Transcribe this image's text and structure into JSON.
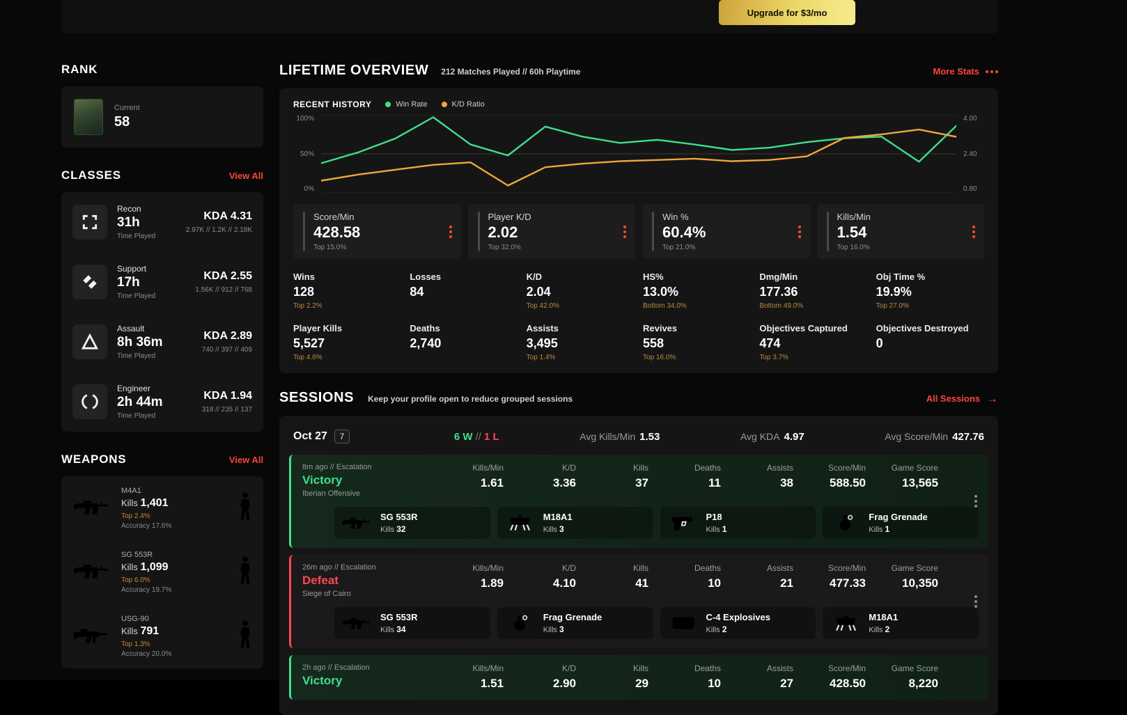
{
  "colors": {
    "accent_red": "#ff4436",
    "win_green": "#3fdf8e",
    "kd_orange": "#f0a63a",
    "defeat_red": "#ff4655",
    "percentile_gold": "#bd8a3e",
    "upgrade_gold": "#ecd768"
  },
  "topbar": {
    "upgrade_label": "Upgrade for $3/mo"
  },
  "sidebar": {
    "rank": {
      "title": "RANK",
      "current_label": "Current",
      "value": "58"
    },
    "classes": {
      "title": "CLASSES",
      "view_all": "View All",
      "time_played_label": "Time Played",
      "items": [
        {
          "name": "Recon",
          "time": "31h",
          "kda_label": "KDA",
          "kda_value": "4.31",
          "detail": "2.97K // 1.2K // 2.18K"
        },
        {
          "name": "Support",
          "time": "17h",
          "kda_label": "KDA",
          "kda_value": "2.55",
          "detail": "1.56K // 912 // 768"
        },
        {
          "name": "Assault",
          "time": "8h 36m",
          "kda_label": "KDA",
          "kda_value": "2.89",
          "detail": "740 // 397 // 409"
        },
        {
          "name": "Engineer",
          "time": "2h 44m",
          "kda_label": "KDA",
          "kda_value": "1.94",
          "detail": "318 // 235 // 137"
        }
      ]
    },
    "weapons": {
      "title": "WEAPONS",
      "view_all": "View All",
      "items": [
        {
          "name": "M4A1",
          "kills_label": "Kills",
          "kills_value": "1,401",
          "top": "Top 2.4%",
          "accuracy": "Accuracy 17.6%"
        },
        {
          "name": "SG 553R",
          "kills_label": "Kills",
          "kills_value": "1,099",
          "top": "Top 6.0%",
          "accuracy": "Accuracy 19.7%"
        },
        {
          "name": "USG-90",
          "kills_label": "Kills",
          "kills_value": "791",
          "top": "Top 1.3%",
          "accuracy": "Accuracy 20.0%"
        }
      ]
    }
  },
  "overview": {
    "title": "LIFETIME OVERVIEW",
    "subtitle": "212 Matches Played // 60h Playtime",
    "more_stats": "More Stats",
    "recent_history": {
      "title": "RECENT HISTORY",
      "legend": [
        {
          "label": "Win Rate",
          "color": "#3fdf8e"
        },
        {
          "label": "K/D Ratio",
          "color": "#f0a63a"
        }
      ],
      "left_axis_labels": [
        "100%",
        "50%",
        "0%"
      ],
      "right_axis_labels": [
        "4.00",
        "2.40",
        "0.80"
      ]
    },
    "stat_cards": [
      {
        "label": "Score/Min",
        "value": "428.58",
        "percentile": "Top 15.0%"
      },
      {
        "label": "Player K/D",
        "value": "2.02",
        "percentile": "Top 32.0%"
      },
      {
        "label": "Win %",
        "value": "60.4%",
        "percentile": "Top 21.0%"
      },
      {
        "label": "Kills/Min",
        "value": "1.54",
        "percentile": "Top 16.0%"
      }
    ],
    "stats_grid": [
      {
        "label": "Wins",
        "value": "128",
        "percentile": "Top 2.2%"
      },
      {
        "label": "Losses",
        "value": "84",
        "percentile": ""
      },
      {
        "label": "K/D",
        "value": "2.04",
        "percentile": "Top 42.0%"
      },
      {
        "label": "HS%",
        "value": "13.0%",
        "percentile": "Bottom 34.0%"
      },
      {
        "label": "Dmg/Min",
        "value": "177.36",
        "percentile": "Bottom 49.0%"
      },
      {
        "label": "Obj Time %",
        "value": "19.9%",
        "percentile": "Top 27.0%"
      },
      {
        "label": "Player Kills",
        "value": "5,527",
        "percentile": "Top 4.6%"
      },
      {
        "label": "Deaths",
        "value": "2,740",
        "percentile": ""
      },
      {
        "label": "Assists",
        "value": "3,495",
        "percentile": "Top 1.4%"
      },
      {
        "label": "Revives",
        "value": "558",
        "percentile": "Top 16.0%"
      },
      {
        "label": "Objectives Captured",
        "value": "474",
        "percentile": "Top 3.7%"
      },
      {
        "label": "Objectives Destroyed",
        "value": "0",
        "percentile": ""
      }
    ]
  },
  "sessions": {
    "title": "SESSIONS",
    "subtitle": "Keep your profile open to reduce grouped sessions",
    "all_sessions": "All Sessions",
    "group": {
      "date": "Oct 27",
      "count": "7",
      "wins": "6 W",
      "sep": "//",
      "losses": "1 L",
      "avg1_label": "Avg Kills/Min",
      "avg1_value": "1.53",
      "avg2_label": "Avg KDA",
      "avg2_value": "4.97",
      "avg3_label": "Avg Score/Min",
      "avg3_value": "427.76"
    },
    "stat_labels": [
      "Kills/Min",
      "K/D",
      "Kills",
      "Deaths",
      "Assists",
      "Score/Min",
      "Game Score"
    ],
    "rows": [
      {
        "ago": "8m ago // Escalation",
        "result": "Victory",
        "map": "Iberian Offensive",
        "stats": [
          "1.61",
          "3.36",
          "37",
          "11",
          "38",
          "588.50",
          "13,565"
        ],
        "weapons": [
          {
            "name": "SG 553R",
            "kills_label": "Kills",
            "kills_value": "32"
          },
          {
            "name": "M18A1",
            "kills_label": "Kills",
            "kills_value": "3"
          },
          {
            "name": "P18",
            "kills_label": "Kills",
            "kills_value": "1"
          },
          {
            "name": "Frag Grenade",
            "kills_label": "Kills",
            "kills_value": "1"
          }
        ]
      },
      {
        "ago": "26m ago // Escalation",
        "result": "Defeat",
        "map": "Siege of Cairo",
        "stats": [
          "1.89",
          "4.10",
          "41",
          "10",
          "21",
          "477.33",
          "10,350"
        ],
        "weapons": [
          {
            "name": "SG 553R",
            "kills_label": "Kills",
            "kills_value": "34"
          },
          {
            "name": "Frag Grenade",
            "kills_label": "Kills",
            "kills_value": "3"
          },
          {
            "name": "C-4 Explosives",
            "kills_label": "Kills",
            "kills_value": "2"
          },
          {
            "name": "M18A1",
            "kills_label": "Kills",
            "kills_value": "2"
          }
        ]
      },
      {
        "ago": "2h ago // Escalation",
        "result": "Victory",
        "map": "",
        "stats": [
          "1.51",
          "2.90",
          "29",
          "10",
          "27",
          "428.50",
          "8,220"
        ],
        "weapons": []
      }
    ]
  },
  "chart_data": {
    "type": "line",
    "title": "RECENT HISTORY",
    "x": [
      1,
      2,
      3,
      4,
      5,
      6,
      7,
      8,
      9,
      10,
      11,
      12,
      13,
      14,
      15,
      16,
      17,
      18
    ],
    "left_axis": {
      "min": 0,
      "max": 100,
      "ticks": [
        "0%",
        "50%",
        "100%"
      ]
    },
    "right_axis": {
      "min": 0.8,
      "max": 4.0,
      "ticks": [
        "0.80",
        "2.40",
        "4.00"
      ]
    },
    "grid": true,
    "legend_position": "top",
    "series": [
      {
        "name": "Win Rate",
        "axis": "left",
        "color": "#3fdf8e",
        "values": [
          38,
          52,
          70,
          97,
          62,
          48,
          85,
          72,
          64,
          68,
          62,
          55,
          58,
          65,
          70,
          72,
          40,
          86
        ]
      },
      {
        "name": "K/D Ratio",
        "axis": "right",
        "color": "#f0a63a",
        "values": [
          1.3,
          1.55,
          1.75,
          1.95,
          2.05,
          1.1,
          1.85,
          2.0,
          2.1,
          2.15,
          2.2,
          2.1,
          2.15,
          2.3,
          3.05,
          3.2,
          3.4,
          3.1
        ]
      }
    ]
  }
}
